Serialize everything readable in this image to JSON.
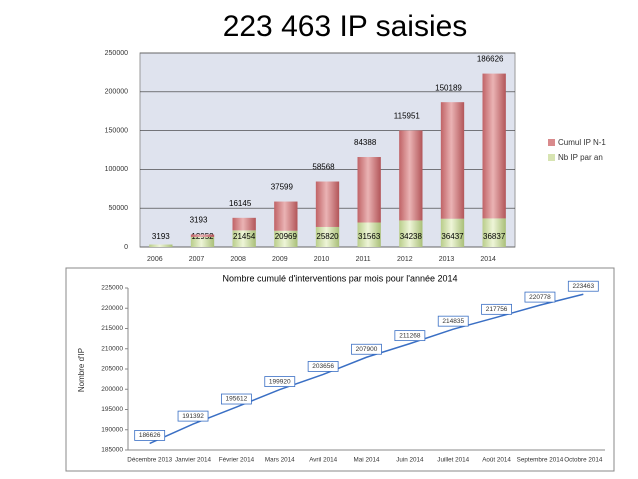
{
  "title": "223 463 IP saisies",
  "chart_data": [
    {
      "type": "bar",
      "stacked": true,
      "legend": "right",
      "grid": true,
      "categories": [
        "2006",
        "2007",
        "2008",
        "2009",
        "2010",
        "2011",
        "2012",
        "2013",
        "2014"
      ],
      "series": [
        {
          "name": "Nb IP par an",
          "color": "#d7e4b2",
          "values": [
            3193,
            12952,
            21454,
            20969,
            25820,
            31563,
            34238,
            36437,
            36837
          ]
        },
        {
          "name": "Cumul IP N-1",
          "color": "#d98a8c",
          "values": [
            null,
            3193,
            16145,
            37599,
            58568,
            84388,
            115951,
            150189,
            186626
          ]
        }
      ],
      "ylim": [
        0,
        250000
      ],
      "yticks": [
        0,
        50000,
        100000,
        150000,
        200000,
        250000
      ]
    },
    {
      "type": "line",
      "title": "Nombre cumulé d'interventions par mois pour l'année 2014",
      "ylabel": "Nombre d'IP",
      "categories": [
        "Décembre 2013",
        "Janvier 2014",
        "Février 2014",
        "Mars 2014",
        "Avril 2014",
        "Mai 2014",
        "Juin 2014",
        "Juillet 2014",
        "Août 2014",
        "Septembre 2014",
        "Octobre 2014"
      ],
      "series": [
        {
          "name": "Nombre cumulé",
          "color": "#3a6fc4",
          "values": [
            186626,
            191392,
            195612,
            199920,
            203656,
            207900,
            211268,
            214835,
            217756,
            220778,
            223463
          ]
        }
      ],
      "ylim": [
        185000,
        225000
      ],
      "yticks": [
        185000,
        190000,
        195000,
        200000,
        205000,
        210000,
        215000,
        220000,
        225000
      ]
    }
  ]
}
